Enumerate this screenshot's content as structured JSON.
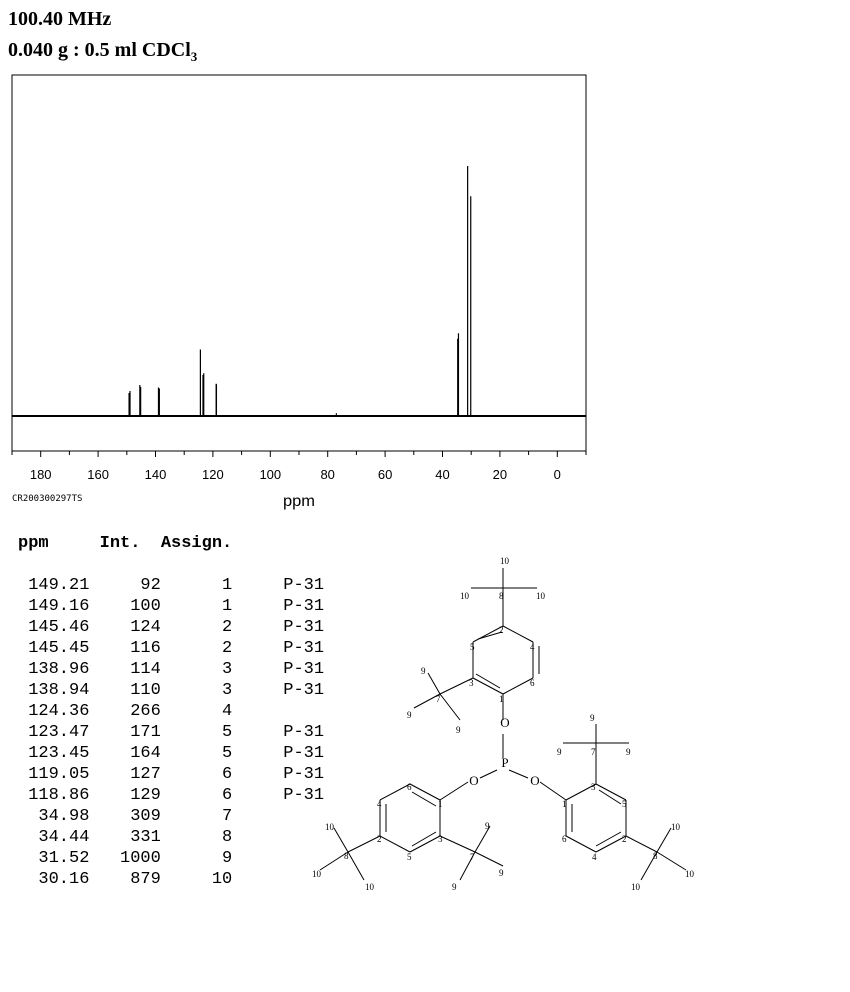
{
  "header": {
    "frequency": "100.40 MHz",
    "sample_main": "0.040 g : 0.5 ml CDCl",
    "sample_sub": "3"
  },
  "spectrum_code": "CR200300297TS",
  "chart_data": {
    "type": "bar",
    "xlabel": "ppm",
    "xlim": [
      190,
      -10
    ],
    "x_reversed": true,
    "ticks": [
      180,
      160,
      140,
      120,
      100,
      80,
      60,
      40,
      20,
      0
    ],
    "tick_labels": [
      "180",
      "160",
      "140",
      "120",
      "100",
      "80",
      "60",
      "40",
      "20",
      "0"
    ],
    "peaks": [
      {
        "ppm": 149.21,
        "int": 92
      },
      {
        "ppm": 149.16,
        "int": 100
      },
      {
        "ppm": 145.46,
        "int": 124
      },
      {
        "ppm": 145.45,
        "int": 116
      },
      {
        "ppm": 138.96,
        "int": 114
      },
      {
        "ppm": 138.94,
        "int": 110
      },
      {
        "ppm": 124.36,
        "int": 266
      },
      {
        "ppm": 123.47,
        "int": 171
      },
      {
        "ppm": 123.45,
        "int": 164
      },
      {
        "ppm": 119.05,
        "int": 127
      },
      {
        "ppm": 118.86,
        "int": 129
      },
      {
        "ppm": 34.98,
        "int": 309
      },
      {
        "ppm": 34.44,
        "int": 331
      },
      {
        "ppm": 31.52,
        "int": 1000
      },
      {
        "ppm": 30.16,
        "int": 879
      }
    ],
    "solvent_peak_ppm": 77.0
  },
  "table": {
    "headers": [
      "ppm",
      "Int.",
      "Assign."
    ],
    "rows": [
      [
        "149.21",
        "92",
        "1",
        "P-31"
      ],
      [
        "149.16",
        "100",
        "1",
        "P-31"
      ],
      [
        "145.46",
        "124",
        "2",
        "P-31"
      ],
      [
        "145.45",
        "116",
        "2",
        "P-31"
      ],
      [
        "138.96",
        "114",
        "3",
        "P-31"
      ],
      [
        "138.94",
        "110",
        "3",
        "P-31"
      ],
      [
        "124.36",
        "266",
        "4",
        ""
      ],
      [
        "123.47",
        "171",
        "5",
        "P-31"
      ],
      [
        "123.45",
        "164",
        "5",
        "P-31"
      ],
      [
        "119.05",
        "127",
        "6",
        "P-31"
      ],
      [
        "118.86",
        "129",
        "6",
        "P-31"
      ],
      [
        "34.98",
        "309",
        "7",
        ""
      ],
      [
        "34.44",
        "331",
        "8",
        ""
      ],
      [
        "31.52",
        "1000",
        "9",
        ""
      ],
      [
        "30.16",
        "879",
        "10",
        ""
      ]
    ]
  },
  "structure": {
    "atoms": {
      "phosphorus": "P",
      "oxygen": "O"
    },
    "labels": [
      "1",
      "2",
      "3",
      "4",
      "5",
      "6",
      "7",
      "8",
      "9",
      "10"
    ]
  }
}
